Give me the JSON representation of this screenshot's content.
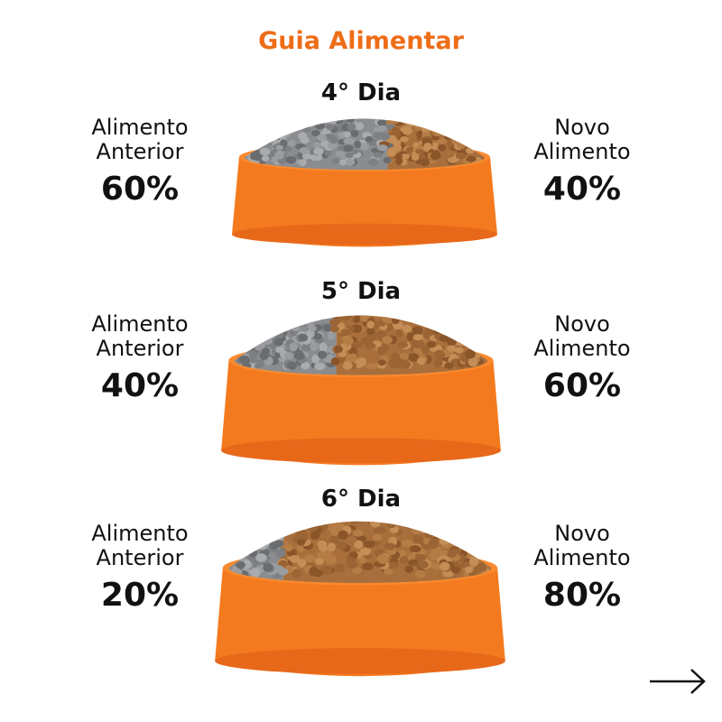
{
  "title": "Guia Alimentar",
  "colors": {
    "accent": "#ee6d17",
    "bowl": "#f47a1f",
    "old_food": "#8a8c8f",
    "new_food": "#a86f3c"
  },
  "stages": [
    {
      "day": "4° Dia",
      "left_label1": "Alimento",
      "left_label2": "Anterior",
      "left_percent": "60%",
      "right_label1": "Novo",
      "right_label2": "Alimento",
      "right_percent": "40%",
      "old_fraction": 0.6
    },
    {
      "day": "5° Dia",
      "left_label1": "Alimento",
      "left_label2": "Anterior",
      "left_percent": "40%",
      "right_label1": "Novo",
      "right_label2": "Alimento",
      "right_percent": "60%",
      "old_fraction": 0.4
    },
    {
      "day": "6° Dia",
      "left_label1": "Alimento",
      "left_label2": "Anterior",
      "left_percent": "20%",
      "right_label1": "Novo",
      "right_label2": "Alimento",
      "right_percent": "80%",
      "old_fraction": 0.2
    }
  ],
  "next_icon": "arrow-right-icon"
}
